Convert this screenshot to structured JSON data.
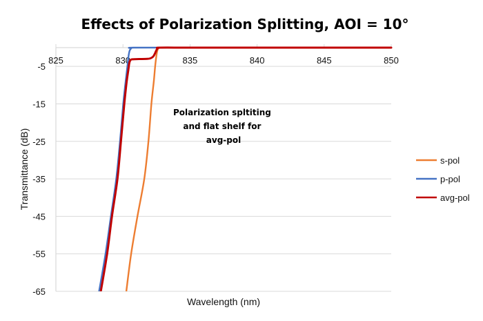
{
  "chart_data": {
    "type": "line",
    "title": "Effects of Polarization Splitting, AOI = 10°",
    "xlabel": "Wavelength (nm)",
    "ylabel": "Transmittance (dB)",
    "xlim": [
      825,
      850
    ],
    "ylim": [
      -65,
      0
    ],
    "x_ticks": [
      825,
      830,
      835,
      840,
      845,
      850
    ],
    "x_tick_labels": [
      "825",
      "830",
      "835",
      "840",
      "845",
      "850"
    ],
    "y_ticks": [
      -5,
      -15,
      -25,
      -35,
      -45,
      -55,
      -65
    ],
    "y_tick_labels": [
      "-5",
      "-15",
      "-25",
      "-35",
      "-45",
      "-55",
      "-65"
    ],
    "grid": true,
    "x_axis_position": "top",
    "legend_position": "right",
    "annotation": {
      "lines": [
        "Polarization spltiting",
        "and flat shelf for",
        "avg-pol"
      ],
      "x": 837.5,
      "y": -18
    },
    "series": [
      {
        "name": "s-pol",
        "color": "#ED7D31",
        "points": [
          [
            830.25,
            -65
          ],
          [
            830.61,
            -55
          ],
          [
            831.08,
            -45
          ],
          [
            831.59,
            -35
          ],
          [
            831.9,
            -25
          ],
          [
            832.12,
            -15
          ],
          [
            832.3,
            -9
          ],
          [
            832.4,
            -5
          ],
          [
            832.5,
            -2
          ],
          [
            832.58,
            -0.6
          ],
          [
            832.68,
            -0.1
          ],
          [
            832.8,
            0
          ],
          [
            835,
            0
          ],
          [
            840,
            0
          ],
          [
            845,
            0
          ],
          [
            850,
            0
          ]
        ]
      },
      {
        "name": "p-pol",
        "color": "#4472C4",
        "points": [
          [
            828.22,
            -65
          ],
          [
            828.7,
            -55
          ],
          [
            829.1,
            -45
          ],
          [
            829.5,
            -35
          ],
          [
            829.78,
            -25
          ],
          [
            830.02,
            -15
          ],
          [
            830.2,
            -9
          ],
          [
            830.33,
            -5
          ],
          [
            830.42,
            -2.2
          ],
          [
            830.5,
            -0.8
          ],
          [
            830.62,
            -0.2
          ],
          [
            830.8,
            0
          ],
          [
            835,
            0
          ],
          [
            840,
            0
          ],
          [
            845,
            0
          ],
          [
            850,
            0
          ]
        ]
      },
      {
        "name": "avg-pol",
        "color": "#C00000",
        "points": [
          [
            828.35,
            -65
          ],
          [
            828.82,
            -55
          ],
          [
            829.18,
            -45
          ],
          [
            829.59,
            -35
          ],
          [
            829.85,
            -25
          ],
          [
            830.1,
            -15
          ],
          [
            830.28,
            -9
          ],
          [
            830.4,
            -6
          ],
          [
            830.48,
            -4
          ],
          [
            830.58,
            -3.25
          ],
          [
            830.75,
            -3.1
          ],
          [
            831.2,
            -3.05
          ],
          [
            831.8,
            -3.0
          ],
          [
            832.05,
            -2.85
          ],
          [
            832.25,
            -2.4
          ],
          [
            832.38,
            -1.6
          ],
          [
            832.48,
            -0.8
          ],
          [
            832.58,
            -0.2
          ],
          [
            832.75,
            0
          ],
          [
            835,
            0
          ],
          [
            840,
            0
          ],
          [
            845,
            0
          ],
          [
            850,
            0
          ]
        ]
      }
    ]
  }
}
